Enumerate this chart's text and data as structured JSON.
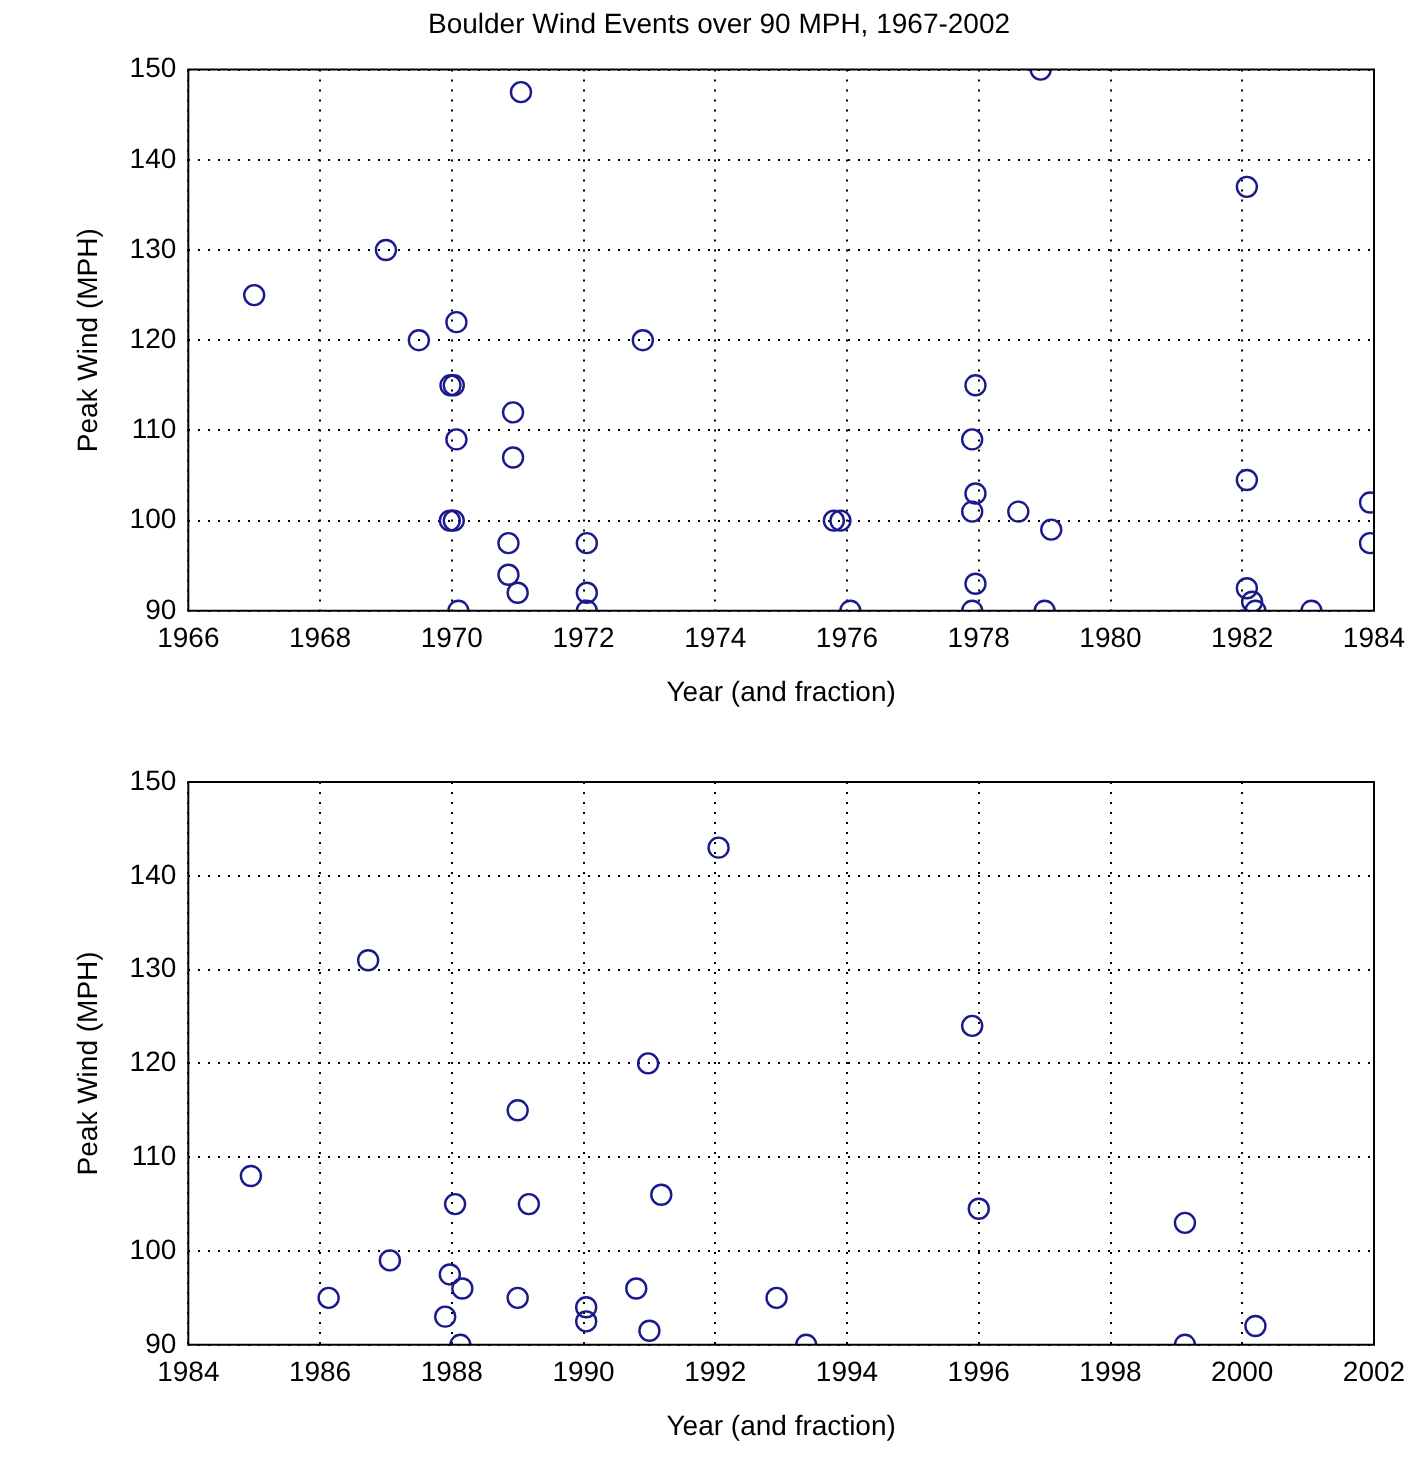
{
  "chart_data": [
    {
      "type": "scatter",
      "title": "Boulder Wind Events over 90 MPH, 1967-2002",
      "xlabel": "Year (and fraction)",
      "ylabel": "Peak Wind (MPH)",
      "xlim": [
        1966,
        1984
      ],
      "ylim": [
        90,
        150
      ],
      "xticks": [
        1966,
        1968,
        1970,
        1972,
        1974,
        1976,
        1978,
        1980,
        1982,
        1984
      ],
      "yticks": [
        90,
        100,
        110,
        120,
        130,
        140,
        150
      ],
      "grid": true,
      "marker": "circle",
      "legend": false,
      "series": [
        {
          "color": "#1a1a8c",
          "x": [
            1967.0,
            1969.0,
            1969.5,
            1970.07,
            1969.98,
            1970.03,
            1970.07,
            1969.97,
            1970.03,
            1970.1,
            1971.05,
            1970.93,
            1970.93,
            1970.86,
            1970.86,
            1971.0,
            1972.05,
            1972.05,
            1972.05,
            1972.9,
            1978.94,
            1982.07,
            1975.8,
            1975.9,
            1976.05,
            1977.95,
            1977.9,
            1977.95,
            1977.9,
            1978.6,
            1979.1,
            1977.95,
            1977.9,
            1979.0,
            1982.07,
            1982.07,
            1982.15,
            1982.2,
            1983.05,
            1983.94,
            1983.94
          ],
          "values": [
            125,
            130,
            120,
            122,
            115,
            115,
            109,
            100,
            100,
            90,
            147.5,
            112,
            107,
            97.5,
            94,
            92,
            97.5,
            92,
            90,
            120,
            150,
            137,
            100,
            100,
            90,
            115,
            109,
            103,
            101,
            101,
            99,
            93,
            90,
            90,
            104.5,
            92.5,
            91,
            90,
            90,
            102,
            97.5
          ]
        }
      ]
    },
    {
      "type": "scatter",
      "xlabel": "Year (and fraction)",
      "ylabel": "Peak Wind (MPH)",
      "xlim": [
        1984,
        2002
      ],
      "ylim": [
        90,
        150
      ],
      "xticks": [
        1984,
        1986,
        1988,
        1990,
        1992,
        1994,
        1996,
        1998,
        2000,
        2002
      ],
      "yticks": [
        90,
        100,
        110,
        120,
        130,
        140,
        150
      ],
      "grid": true,
      "marker": "circle",
      "legend": false,
      "series": [
        {
          "color": "#1a1a8c",
          "x": [
            1984.95,
            1986.13,
            1986.73,
            1987.06,
            1987.97,
            1988.16,
            1987.9,
            1988.13,
            1988.05,
            1989.0,
            1989.17,
            1989.0,
            1990.04,
            1990.04,
            1990.98,
            1990.8,
            1991.0,
            1991.18,
            1992.05,
            1992.93,
            1993.38,
            1995.9,
            1996.0,
            1999.13,
            1999.13,
            2000.2
          ],
          "values": [
            108,
            95,
            131,
            99,
            97.5,
            96,
            93,
            90,
            105,
            115,
            105,
            95,
            94,
            92.5,
            120,
            96,
            91.5,
            106,
            143,
            95,
            90,
            124,
            104.5,
            103,
            90,
            92
          ]
        }
      ]
    }
  ]
}
